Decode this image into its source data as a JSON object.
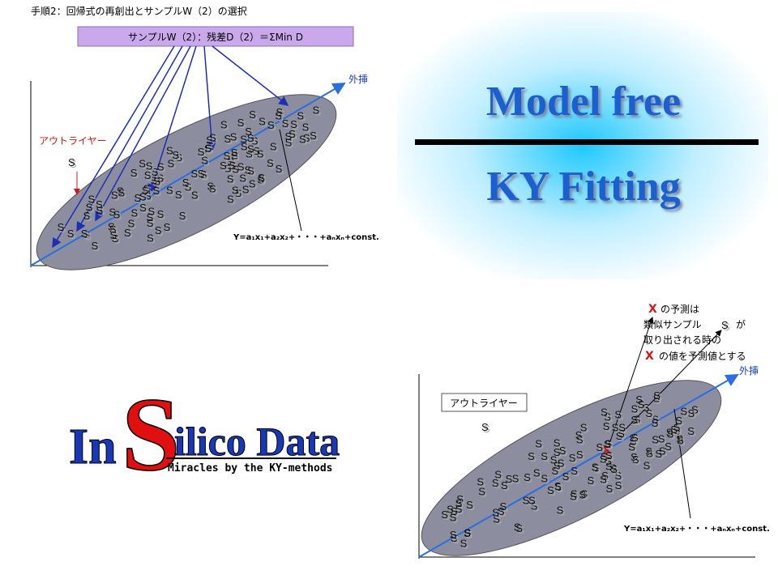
{
  "top_left": {
    "step_title": "手順2：回帰式の再創出とサンプルW（2）の選択",
    "box": "サンプルW（2）：残差D（2）＝ΣMin D",
    "extrapolation": "外挿",
    "outlier": "アウトライヤー",
    "equation": "Y=a₁x₁+a₂x₂+・・・+aₙxₙ+const."
  },
  "title": {
    "line1": "Model free",
    "line2": "KY Fitting"
  },
  "logo": {
    "in": "In",
    "s": "S",
    "rest": "ilico Data",
    "tagline": "Miracles by the KY-methods"
  },
  "bottom_right": {
    "outlier": "アウトライヤー",
    "extrapolation": "外挿",
    "equation": "Y=a₁x₁+a₂x₂+・・・+aₙxₙ+const.",
    "note": {
      "x_mark": "X",
      "line1": "の予測は",
      "line2a": "類似サンプル",
      "s_mark": "S",
      "line2b": "が",
      "line3": "取り出される時の",
      "line4": "の値を予測値とする"
    }
  },
  "sample_mark": "S"
}
